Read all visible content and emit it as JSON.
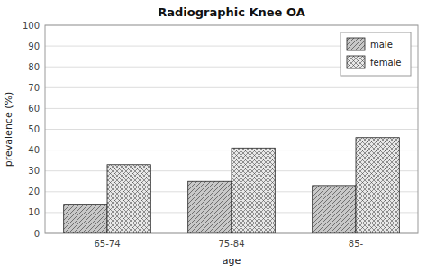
{
  "chart_data": {
    "type": "bar",
    "title": "Radiographic Knee OA",
    "xlabel": "age",
    "ylabel": "prevalence (%)",
    "categories": [
      "65-74",
      "75-84",
      "85-"
    ],
    "series": [
      {
        "name": "male",
        "color": "#c8c8c8",
        "values": [
          14,
          25,
          23
        ]
      },
      {
        "name": "female",
        "color": "#e8e8e8",
        "values": [
          33,
          41,
          46
        ]
      }
    ],
    "ylim": [
      0,
      100
    ],
    "yticks": [
      0,
      10,
      20,
      30,
      40,
      50,
      60,
      70,
      80,
      90,
      100
    ],
    "grid": true,
    "legend": "upper right"
  }
}
